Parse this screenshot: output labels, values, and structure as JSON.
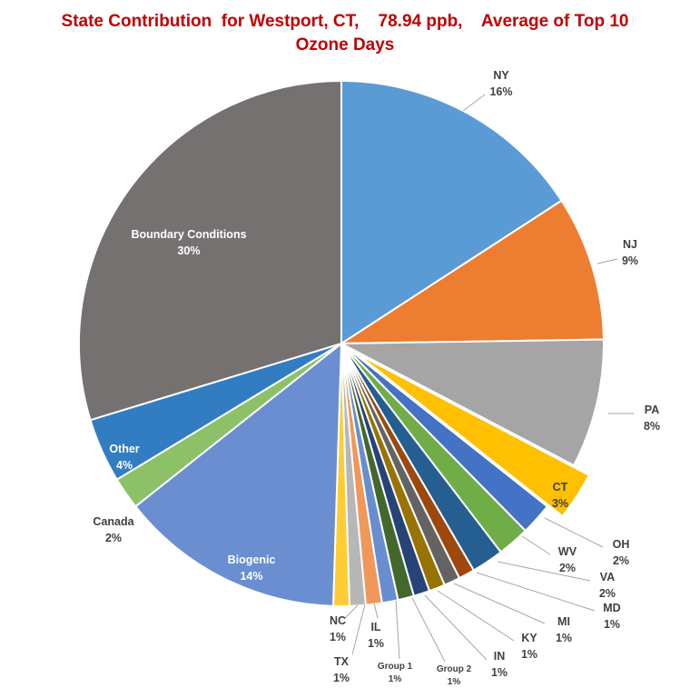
{
  "chart_data": {
    "type": "pie",
    "title_line1": "State Contribution  for Westport, CT,    78.94 ppb,    Average of Top 10",
    "title_line2": "Ozone Days",
    "title_color": "#C00000",
    "slices": [
      {
        "name": "NY",
        "value": 16,
        "pct": "16%",
        "color": "#5B9BD5"
      },
      {
        "name": "NJ",
        "value": 9,
        "pct": "9%",
        "color": "#ED7D31"
      },
      {
        "name": "PA",
        "value": 8,
        "pct": "8%",
        "color": "#A5A5A5"
      },
      {
        "name": "CT",
        "value": 3,
        "pct": "3%",
        "color": "#FFC000",
        "exploded": true
      },
      {
        "name": "OH",
        "value": 2,
        "pct": "2%",
        "color": "#4472C4"
      },
      {
        "name": "WV",
        "value": 2,
        "pct": "2%",
        "color": "#70AD47"
      },
      {
        "name": "VA",
        "value": 2,
        "pct": "2%",
        "color": "#255E91"
      },
      {
        "name": "MD",
        "value": 1,
        "pct": "1%",
        "color": "#9E480E"
      },
      {
        "name": "MI",
        "value": 1,
        "pct": "1%",
        "color": "#636363"
      },
      {
        "name": "KY",
        "value": 1,
        "pct": "1%",
        "color": "#997300"
      },
      {
        "name": "IN",
        "value": 1,
        "pct": "1%",
        "color": "#264478"
      },
      {
        "name": "Group 2",
        "value": 1,
        "pct": "1%",
        "color": "#43682B"
      },
      {
        "name": "Group 1",
        "value": 1,
        "pct": "1%",
        "color": "#698ED0"
      },
      {
        "name": "IL",
        "value": 1,
        "pct": "1%",
        "color": "#F1975A"
      },
      {
        "name": "TX",
        "value": 1,
        "pct": "1%",
        "color": "#B7B7B7"
      },
      {
        "name": "NC",
        "value": 1,
        "pct": "1%",
        "color": "#FFCD33"
      },
      {
        "name": "Biogenic",
        "value": 14,
        "pct": "14%",
        "color": "#6A8ED0"
      },
      {
        "name": "Canada",
        "value": 2,
        "pct": "2%",
        "color": "#8CC168"
      },
      {
        "name": "Other",
        "value": 4,
        "pct": "4%",
        "color": "#327DC2"
      },
      {
        "name": "Boundary Conditions",
        "value": 30,
        "pct": "30%",
        "color": "#767171"
      }
    ]
  }
}
